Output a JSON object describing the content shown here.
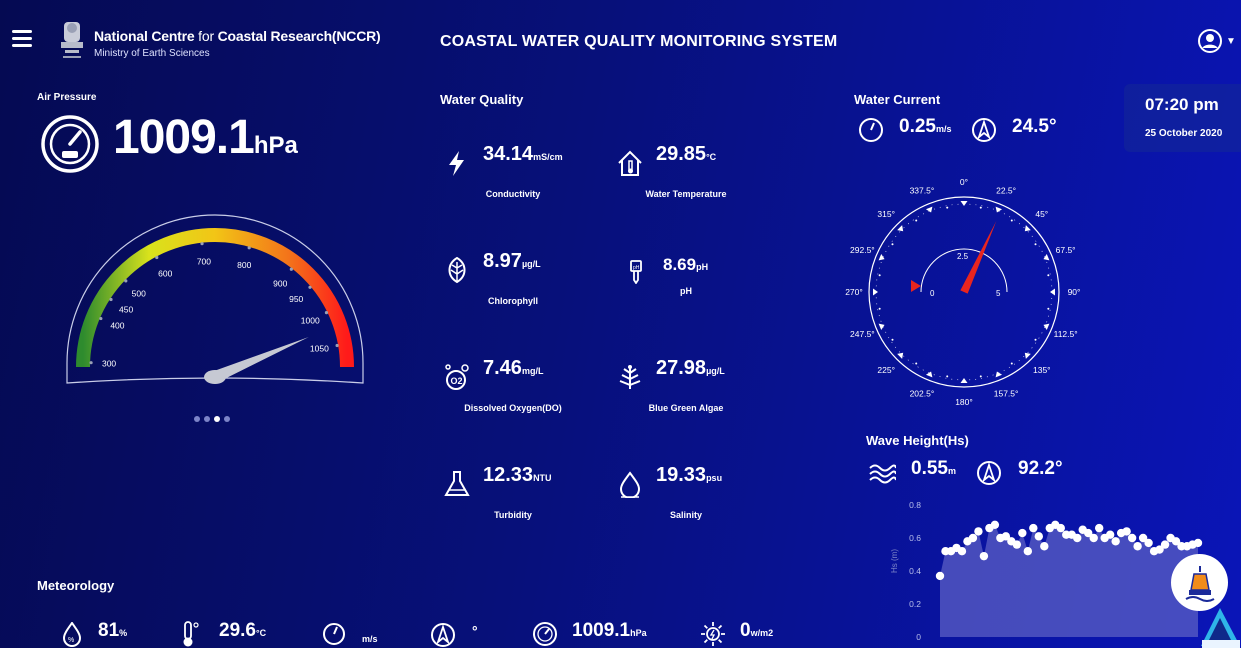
{
  "header": {
    "org_name_1": "National Centre",
    "org_name_2": "for",
    "org_name_3": "Coastal Research(NCCR)",
    "org_sub": "Ministry of Earth Sciences",
    "app_title": "COASTAL WATER QUALITY MONITORING SYSTEM"
  },
  "air_pressure": {
    "label": "Air Pressure",
    "value": "1009.1",
    "unit": "hPa",
    "gauge_ticks": [
      "300",
      "400",
      "450",
      "500",
      "600",
      "700",
      "800",
      "900",
      "950",
      "1000",
      "1050"
    ],
    "gauge_value": 1009.1
  },
  "carousel": {
    "active_index": 2,
    "count": 4
  },
  "water_quality": {
    "title": "Water Quality",
    "metrics": [
      {
        "name": "Conductivity",
        "value": "34.14",
        "unit": "mS/cm",
        "icon": "lightning-icon"
      },
      {
        "name": "Water Temperature",
        "value": "29.85",
        "unit": "°C",
        "icon": "home-thermometer-icon"
      },
      {
        "name": "Chlorophyll",
        "value": "8.97",
        "unit": "µg/L",
        "icon": "leaf-icon"
      },
      {
        "name": "pH",
        "value": "8.69",
        "unit": "pH",
        "icon": "ph-probe-icon"
      },
      {
        "name": "Dissolved Oxygen(DO)",
        "value": "7.46",
        "unit": "mg/L",
        "icon": "oxygen-icon"
      },
      {
        "name": "Blue Green Algae",
        "value": "27.98",
        "unit": "µg/L",
        "icon": "algae-icon"
      },
      {
        "name": "Turbidity",
        "value": "12.33",
        "unit": "NTU",
        "icon": "flask-icon"
      },
      {
        "name": "Salinity",
        "value": "19.33",
        "unit": "psu",
        "icon": "water-drop-icon"
      }
    ]
  },
  "water_current": {
    "title": "Water Current",
    "speed": "0.25",
    "speed_unit": "m/s",
    "direction": "24.5°",
    "compass_labels": [
      "0°",
      "22.5°",
      "45°",
      "67.5°",
      "90°",
      "112.5°",
      "135°",
      "157.5°",
      "180°",
      "202.5°",
      "225°",
      "247.5°",
      "270°",
      "292.5°",
      "315°",
      "337.5°"
    ],
    "inner_labels": [
      "0",
      "2.5",
      "5"
    ],
    "direction_deg": 24.5,
    "speed_fraction": 0.05
  },
  "datetime": {
    "time": "07:20 pm",
    "date": "25 October 2020"
  },
  "wave_height": {
    "title": "Wave Height(Hs)",
    "value": "0.55",
    "unit": "m",
    "direction": "92.2°"
  },
  "chart_data": {
    "type": "area",
    "ylabel": "Hs (m)",
    "ylim": [
      0,
      0.8
    ],
    "y_ticks": [
      "0.8",
      "0.6",
      "0.4",
      "0.2",
      "0"
    ],
    "values": [
      0.37,
      0.52,
      0.52,
      0.54,
      0.52,
      0.58,
      0.6,
      0.64,
      0.49,
      0.66,
      0.68,
      0.6,
      0.61,
      0.58,
      0.56,
      0.63,
      0.52,
      0.66,
      0.61,
      0.55,
      0.66,
      0.68,
      0.66,
      0.62,
      0.62,
      0.6,
      0.65,
      0.63,
      0.6,
      0.66,
      0.6,
      0.62,
      0.58,
      0.63,
      0.64,
      0.6,
      0.55,
      0.6,
      0.57,
      0.52,
      0.53,
      0.56,
      0.6,
      0.58,
      0.55,
      0.55,
      0.56,
      0.57
    ]
  },
  "meteorology": {
    "title": "Meteorology",
    "items": [
      {
        "value": "81",
        "unit": "%",
        "icon": "humidity-icon"
      },
      {
        "value": "29.6",
        "unit": "°C",
        "icon": "thermometer-icon"
      },
      {
        "value": "",
        "unit": "m/s",
        "icon": "speedometer-icon"
      },
      {
        "value": "",
        "unit": "°",
        "icon": "navigation-icon"
      },
      {
        "value": "1009.1",
        "unit": "hPa",
        "icon": "gauge-icon"
      },
      {
        "value": "0",
        "unit": "w/m2",
        "icon": "solar-icon"
      }
    ]
  },
  "colors": {
    "background": "#07107a",
    "gauge_start": "#2e8b2e",
    "gauge_mid": "#e8e31a",
    "gauge_end": "#ff1a1a",
    "needle_current": "#e8251f",
    "needle_pressure": "#c6c9d3",
    "chart_fill": "#5b5fc4"
  }
}
